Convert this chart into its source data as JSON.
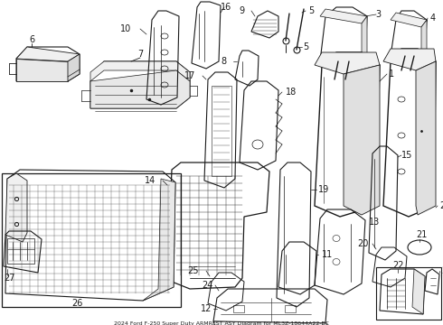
{
  "title": "2024 Ford F-250 Super Duty ARMREST ASY Diagram for ML3Z-18644A22-BC",
  "bg_color": "#ffffff",
  "line_color": "#1a1a1a",
  "fig_width": 4.9,
  "fig_height": 3.6,
  "dpi": 100
}
